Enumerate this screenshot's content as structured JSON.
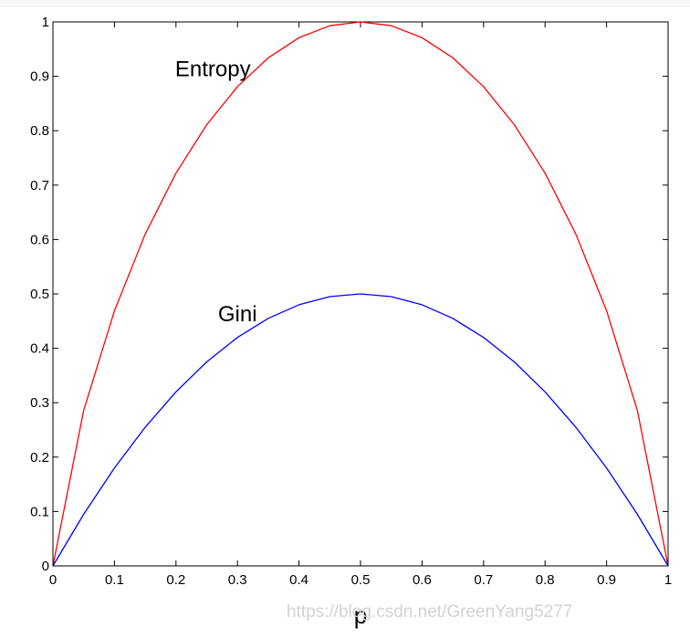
{
  "chart_data": {
    "type": "line",
    "xlabel": "p",
    "ylabel": "",
    "title": "",
    "xlim": [
      0,
      1
    ],
    "ylim": [
      0,
      1
    ],
    "x_ticks": [
      "0",
      "0.1",
      "0.2",
      "0.3",
      "0.4",
      "0.5",
      "0.6",
      "0.7",
      "0.8",
      "0.9",
      "1"
    ],
    "y_ticks": [
      "0",
      "0.1",
      "0.2",
      "0.3",
      "0.4",
      "0.5",
      "0.6",
      "0.7",
      "0.8",
      "0.9",
      "1"
    ],
    "grid": false,
    "x": [
      0,
      0.05,
      0.1,
      0.15,
      0.2,
      0.25,
      0.3,
      0.35,
      0.4,
      0.45,
      0.5,
      0.55,
      0.6,
      0.65,
      0.7,
      0.75,
      0.8,
      0.85,
      0.9,
      0.95,
      1
    ],
    "series": [
      {
        "name": "Entropy",
        "color": "#ff0000",
        "values": [
          0,
          0.286,
          0.469,
          0.61,
          0.722,
          0.811,
          0.881,
          0.934,
          0.971,
          0.993,
          1,
          0.993,
          0.971,
          0.934,
          0.881,
          0.811,
          0.722,
          0.61,
          0.469,
          0.286,
          0
        ]
      },
      {
        "name": "Gini",
        "color": "#0000ff",
        "values": [
          0,
          0.095,
          0.18,
          0.255,
          0.32,
          0.375,
          0.42,
          0.455,
          0.48,
          0.495,
          0.5,
          0.495,
          0.48,
          0.455,
          0.42,
          0.375,
          0.32,
          0.255,
          0.18,
          0.095,
          0
        ]
      }
    ],
    "annotations": [
      {
        "text": "Entropy",
        "x": 0.26,
        "y": 0.9
      },
      {
        "text": "Gini",
        "x": 0.3,
        "y": 0.45
      }
    ]
  },
  "watermark": "https://blog.csdn.net/GreenYang5277"
}
